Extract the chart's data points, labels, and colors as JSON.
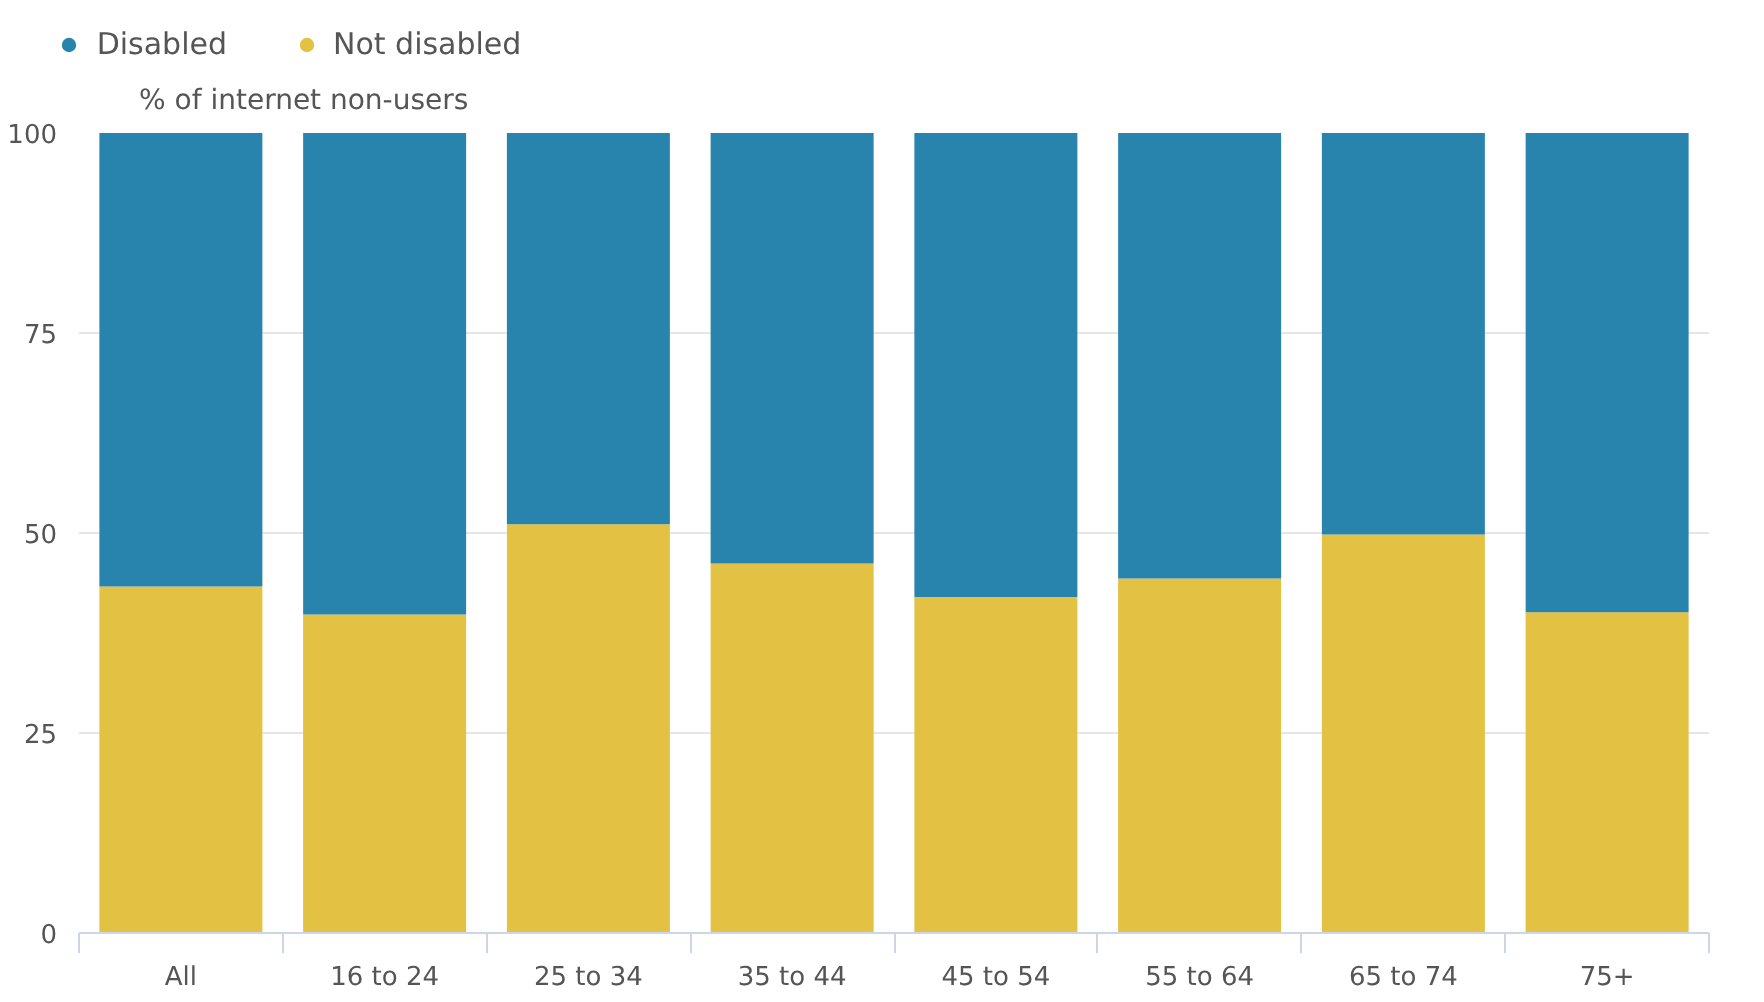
{
  "chart_data": {
    "type": "bar",
    "stacked": true,
    "ylabel": "% of internet non-users",
    "categories": [
      "All",
      "16 to 24",
      "25 to 34",
      "35 to 44",
      "45 to 54",
      "55 to 64",
      "65 to 74",
      "75+"
    ],
    "series": [
      {
        "name": "Not disabled",
        "color": "#e3c143",
        "values": [
          43.3,
          39.8,
          51.1,
          46.2,
          42.0,
          44.3,
          49.8,
          40.1
        ]
      },
      {
        "name": "Disabled",
        "color": "#2884ad",
        "values": [
          56.7,
          60.2,
          48.9,
          53.8,
          58.0,
          55.7,
          50.2,
          59.9
        ]
      }
    ],
    "ylim": [
      0,
      100
    ],
    "yticks": [
      0,
      25,
      50,
      75,
      100
    ],
    "grid": "y",
    "legend": "top left"
  }
}
